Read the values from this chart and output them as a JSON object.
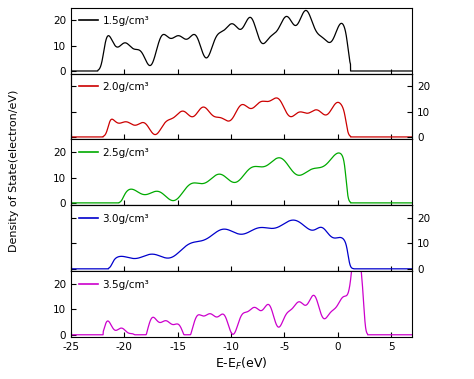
{
  "title": "",
  "xlabel": "E-E$_{F}$(eV)",
  "ylabel": "Density of State(electron/eV)",
  "xlim": [
    -25,
    7
  ],
  "ylim": [
    0,
    25
  ],
  "panels": [
    {
      "label": "1.5g/cm³",
      "color": "#000000",
      "side": "left"
    },
    {
      "label": "2.0g/cm³",
      "color": "#cc0000",
      "side": "right"
    },
    {
      "label": "2.5g/cm³",
      "color": "#00aa00",
      "side": "left"
    },
    {
      "label": "3.0g/cm³",
      "color": "#0000cc",
      "side": "right"
    },
    {
      "label": "3.5g/cm³",
      "color": "#cc00cc",
      "side": "left"
    }
  ],
  "yticks": [
    0,
    10,
    20
  ],
  "xticks": [
    -25,
    -20,
    -15,
    -10,
    -5,
    0,
    5
  ],
  "figsize": [
    4.74,
    3.79
  ],
  "dpi": 100
}
